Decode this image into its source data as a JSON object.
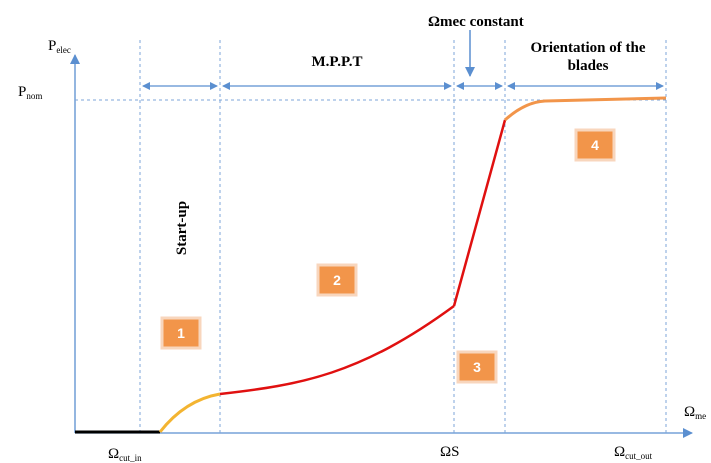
{
  "axes": {
    "y_label_main": "P",
    "y_label_sub": "elec",
    "p_nom_main": "P",
    "p_nom_sub": "nom",
    "x_label_main": "Ω",
    "x_label_sub": "me",
    "tick_cut_in_main": "Ω",
    "tick_cut_in_sub": "cut_in",
    "tick_s": "ΩS",
    "tick_cut_out_main": "Ω",
    "tick_cut_out_sub": "cut_out"
  },
  "zones": {
    "startup": "Start-up",
    "mppt": "M.P.P.T",
    "omega_constant": "Ωmec constant",
    "orientation_line1": "Orientation of the",
    "orientation_line2": "blades"
  },
  "badges": [
    "1",
    "2",
    "3",
    "4"
  ],
  "colors": {
    "axis": "#5b8fd0",
    "badge": "#f2954a",
    "zone1_curve": "#f3b431",
    "zone2_curve": "#e01010",
    "zone4_curve": "#f2954a",
    "idle_curve": "#000000"
  }
}
